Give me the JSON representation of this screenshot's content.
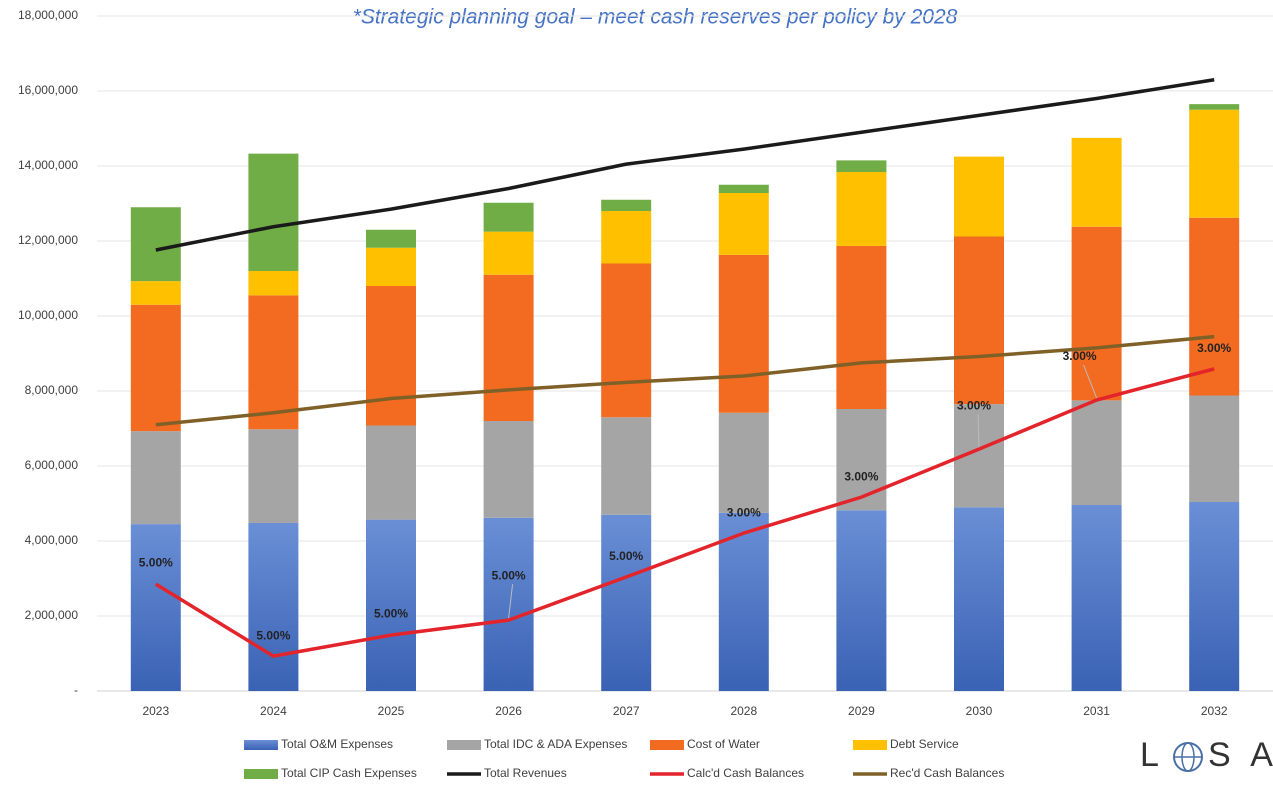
{
  "chart_data": {
    "type": "bar",
    "stacked": true,
    "title": "*Strategic planning goal – meet cash reserves per policy by 2028",
    "categories": [
      "2023",
      "2024",
      "2025",
      "2026",
      "2027",
      "2028",
      "2029",
      "2030",
      "2031",
      "2032"
    ],
    "series": [
      {
        "name": "Total O&M Expenses",
        "type": "bar",
        "color": "#4472c4",
        "values": [
          4450000,
          4480000,
          4570000,
          4620000,
          4700000,
          4750000,
          4820000,
          4900000,
          4960000,
          5040000
        ]
      },
      {
        "name": "Total IDC & ADA Expenses",
        "type": "bar",
        "color": "#a5a5a5",
        "values": [
          2480000,
          2500000,
          2510000,
          2580000,
          2600000,
          2670000,
          2700000,
          2750000,
          2790000,
          2840000
        ]
      },
      {
        "name": "Cost of Water",
        "type": "bar",
        "color": "#f26b21",
        "values": [
          3370000,
          3570000,
          3720000,
          3900000,
          4100000,
          4210000,
          4350000,
          4470000,
          4630000,
          4740000
        ]
      },
      {
        "name": "Debt Service",
        "type": "bar",
        "color": "#ffc000",
        "values": [
          630000,
          650000,
          1020000,
          1150000,
          1400000,
          1650000,
          1970000,
          2130000,
          2370000,
          2880000
        ]
      },
      {
        "name": "Total CIP Cash Expenses",
        "type": "bar",
        "color": "#70ad47",
        "values": [
          1970000,
          3130000,
          480000,
          770000,
          300000,
          220000,
          310000,
          0,
          0,
          150000
        ]
      },
      {
        "name": "Total Revenues",
        "type": "line",
        "color": "#1a1a1a",
        "values": [
          11760000,
          12380000,
          12850000,
          13400000,
          14050000,
          14450000,
          14900000,
          15350000,
          15800000,
          16300000
        ]
      },
      {
        "name": "Calc'd Cash Balances",
        "type": "line",
        "color": "#e3242b",
        "values": [
          2850000,
          930000,
          1490000,
          1890000,
          3040000,
          4210000,
          5170000,
          6450000,
          7760000,
          8590000
        ]
      },
      {
        "name": "Rec'd Cash Balances",
        "type": "line",
        "color": "#7f6128",
        "values": [
          7100000,
          7420000,
          7800000,
          8030000,
          8230000,
          8400000,
          8750000,
          8920000,
          9150000,
          9450000
        ]
      }
    ],
    "annotations": [
      "5.00%",
      "5.00%",
      "5.00%",
      "5.00%",
      "5.00%",
      "3.00%",
      "3.00%",
      "3.00%",
      "3.00%",
      "3.00%"
    ],
    "ylim": [
      0,
      18000000
    ],
    "yticks": [
      {
        "value": 0,
        "label": "-"
      },
      {
        "value": 2000000,
        "label": "2,000,000"
      },
      {
        "value": 4000000,
        "label": "4,000,000"
      },
      {
        "value": 6000000,
        "label": "6,000,000"
      },
      {
        "value": 8000000,
        "label": "8,000,000"
      },
      {
        "value": 10000000,
        "label": "10,000,000"
      },
      {
        "value": 12000000,
        "label": "12,000,000"
      },
      {
        "value": 14000000,
        "label": "14,000,000"
      },
      {
        "value": 16000000,
        "label": "16,000,000"
      },
      {
        "value": 18000000,
        "label": "18,000,000"
      }
    ],
    "grid": true,
    "legend": "bottom"
  },
  "logo": {
    "left": "L",
    "right": "S AI"
  }
}
